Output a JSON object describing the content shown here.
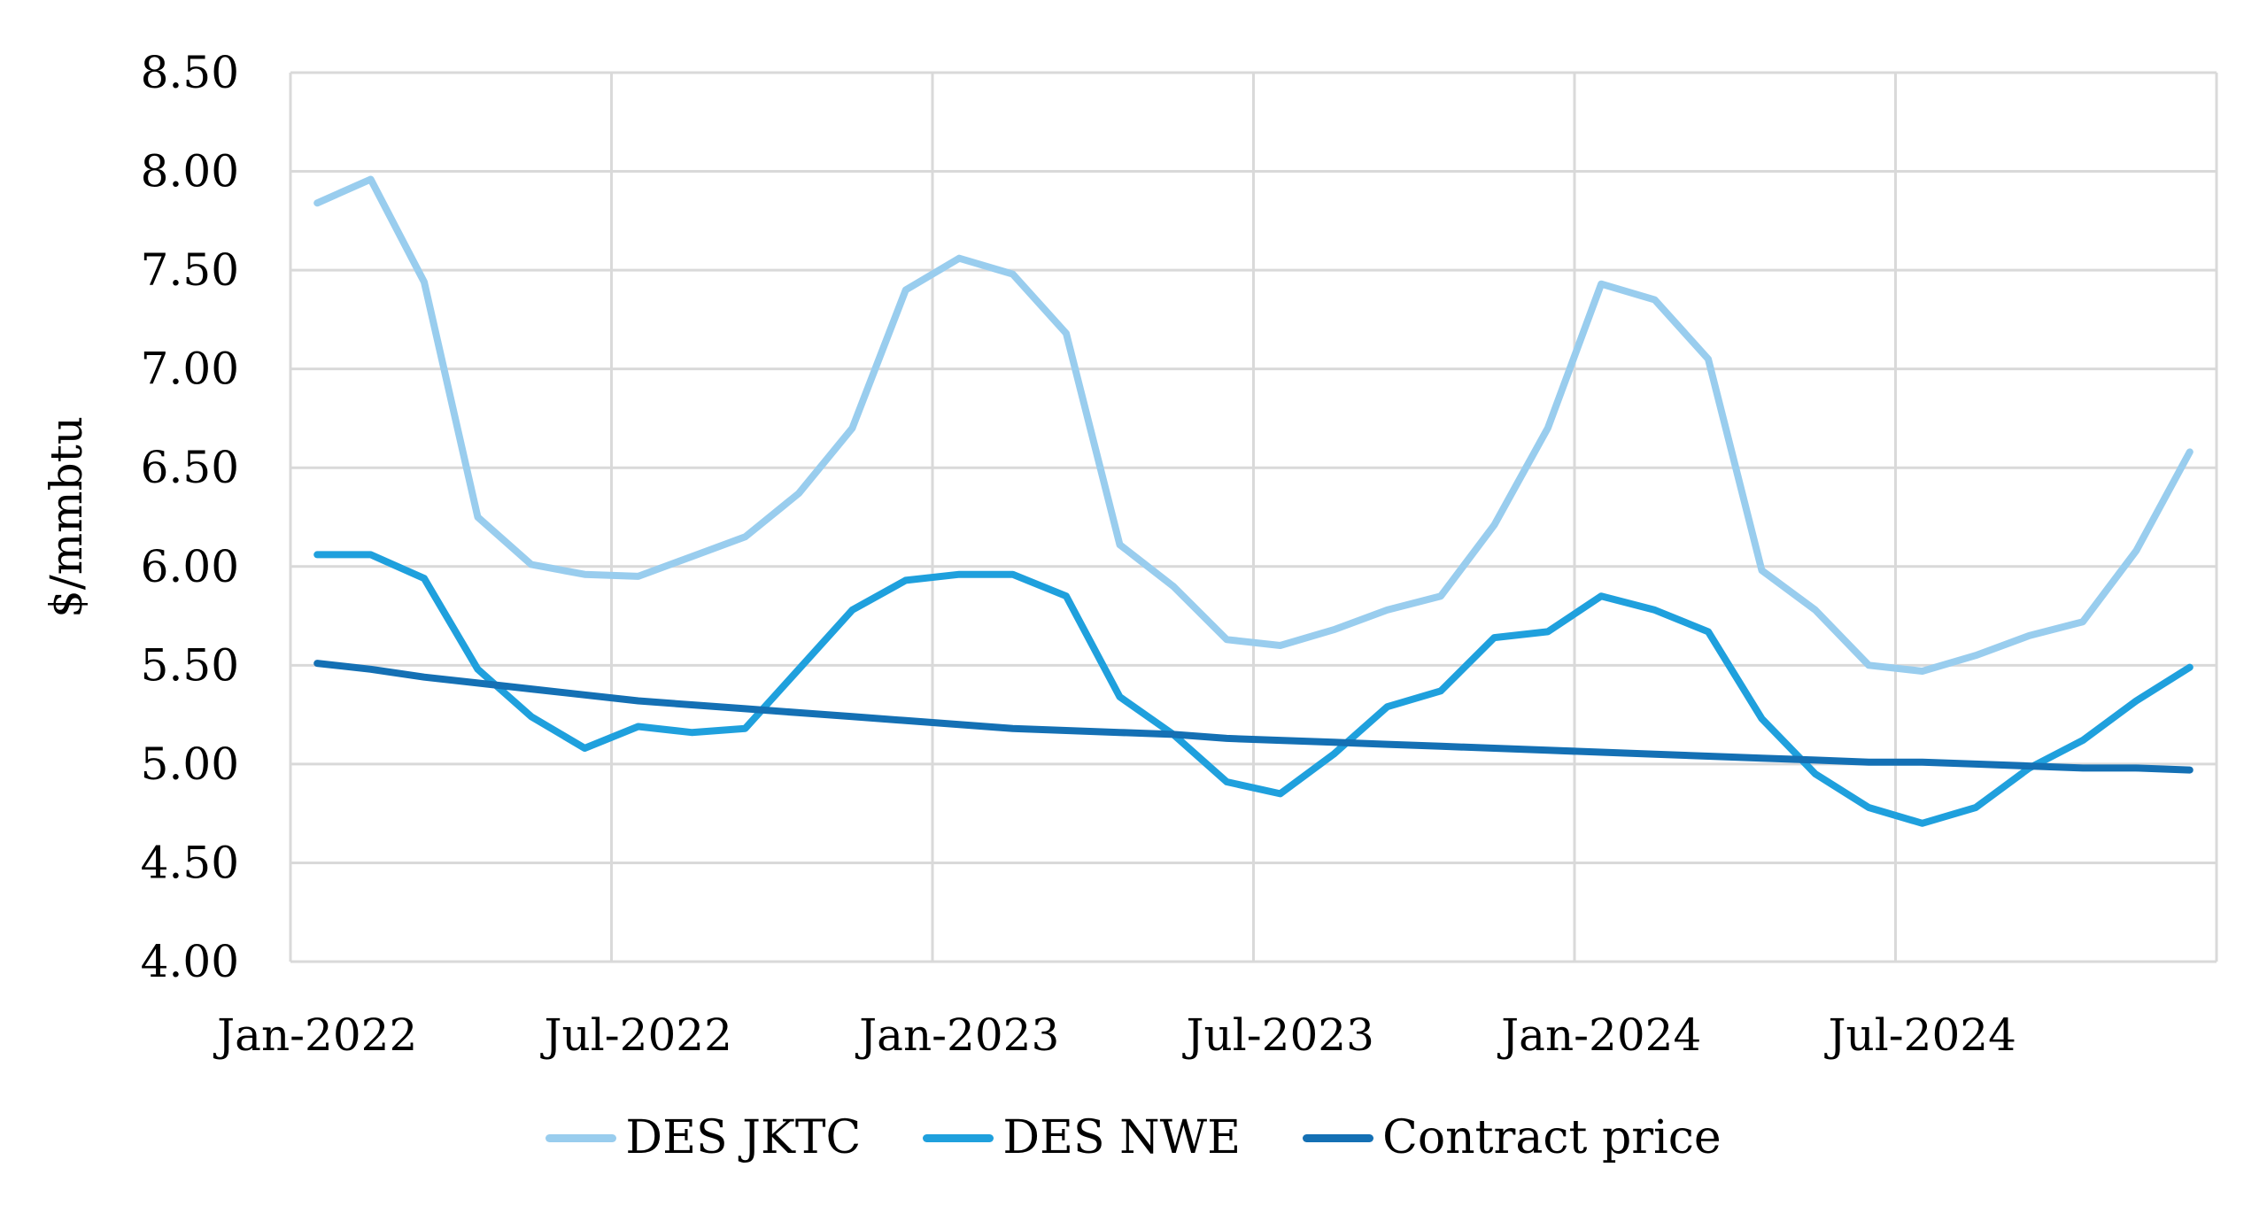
{
  "chart_data": {
    "type": "line",
    "title": "",
    "xlabel": "",
    "ylabel": "$/mmbtu",
    "ylim": [
      4.0,
      8.5
    ],
    "yticks": [
      "4.00",
      "4.50",
      "5.00",
      "5.50",
      "6.00",
      "6.50",
      "7.00",
      "7.50",
      "8.00",
      "8.50"
    ],
    "x_tick_labels": [
      {
        "index": 0,
        "label": "Jan-2022"
      },
      {
        "index": 6,
        "label": "Jul-2022"
      },
      {
        "index": 12,
        "label": "Jan-2023"
      },
      {
        "index": 18,
        "label": "Jul-2023"
      },
      {
        "index": 24,
        "label": "Jan-2024"
      },
      {
        "index": 30,
        "label": "Jul-2024"
      }
    ],
    "x_count": 36,
    "x_start": "Jan-2022",
    "x_end": "Dec-2024",
    "grid": true,
    "legend_placement": "bottom",
    "series": [
      {
        "name": "DES JKTC",
        "color": "#99cdee",
        "values": [
          7.84,
          7.96,
          7.44,
          6.25,
          6.01,
          5.96,
          5.95,
          6.05,
          6.15,
          6.37,
          6.7,
          7.4,
          7.56,
          7.48,
          7.18,
          6.11,
          5.9,
          5.63,
          5.6,
          5.68,
          5.78,
          5.85,
          6.21,
          6.7,
          7.43,
          7.35,
          7.05,
          5.98,
          5.78,
          5.5,
          5.47,
          5.55,
          5.65,
          5.72,
          6.08,
          6.58
        ]
      },
      {
        "name": "DES NWE",
        "color": "#1fa0dd",
        "values": [
          6.06,
          6.06,
          5.94,
          5.48,
          5.24,
          5.08,
          5.19,
          5.16,
          5.18,
          5.48,
          5.78,
          5.93,
          5.96,
          5.96,
          5.85,
          5.34,
          5.15,
          4.91,
          4.85,
          5.05,
          5.29,
          5.37,
          5.64,
          5.67,
          5.85,
          5.78,
          5.67,
          5.23,
          4.95,
          4.78,
          4.7,
          4.78,
          4.98,
          5.12,
          5.32,
          5.49
        ]
      },
      {
        "name": "Contract price",
        "color": "#1470b4",
        "values": [
          5.51,
          5.48,
          5.44,
          5.41,
          5.38,
          5.35,
          5.32,
          5.3,
          5.28,
          5.26,
          5.24,
          5.22,
          5.2,
          5.18,
          5.17,
          5.16,
          5.15,
          5.13,
          5.12,
          5.11,
          5.1,
          5.09,
          5.08,
          5.07,
          5.06,
          5.05,
          5.04,
          5.03,
          5.02,
          5.01,
          5.01,
          5.0,
          4.99,
          4.98,
          4.98,
          4.97
        ]
      }
    ]
  }
}
